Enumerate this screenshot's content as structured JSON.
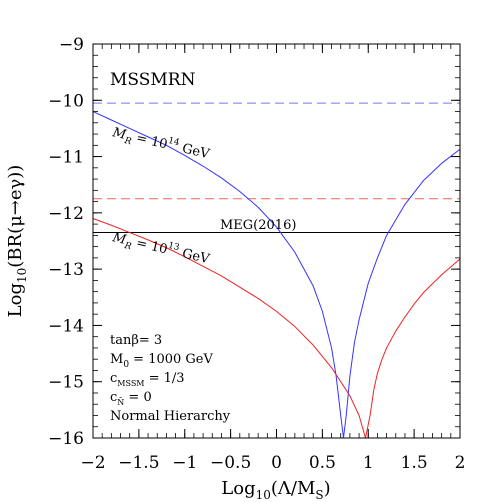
{
  "chart_data": {
    "type": "line",
    "xlabel": {
      "main": "Log",
      "sub": "10",
      "open": "(Λ/M",
      "sub2": "S",
      "close": ")"
    },
    "ylabel": {
      "main": "Log",
      "sub": "10",
      "rest": "(BR(μ→eγ))"
    },
    "xlim": [
      -2,
      2
    ],
    "ylim": [
      -16,
      -9
    ],
    "x_ticks": [
      -2,
      -1.5,
      -1,
      -0.5,
      0,
      0.5,
      1,
      1.5,
      2
    ],
    "x_tick_labels": [
      "−2",
      "−1.5",
      "−1",
      "−0.5",
      "0",
      "0.5",
      "1",
      "1.5",
      "2"
    ],
    "y_ticks": [
      -9,
      -10,
      -11,
      -12,
      -13,
      -14,
      -15,
      -16
    ],
    "y_tick_labels": [
      "−9",
      "−10",
      "−11",
      "−12",
      "−13",
      "−14",
      "−15",
      "−16"
    ],
    "model_label": "MSSMRN",
    "params": {
      "tanb": "tanβ= 3",
      "m0_main": "M",
      "m0_sub": "0",
      "m0_rest": " = 1000 GeV",
      "cmssm_main": "c",
      "cmssm_sub": "MSSM",
      "cmssm_rest": " = 1/3",
      "cn_main": "c",
      "cn_sub": "N̄",
      "cn_rest": " = 0",
      "hierarchy": "Normal Hierarchy"
    },
    "colors": {
      "blue": "#3333ff",
      "red": "#ee2222",
      "blue_dash": "#7777ee",
      "red_dash": "#ee6655",
      "meg": "#000000"
    },
    "hlines": [
      {
        "y": -10.05,
        "style": "dashed",
        "color": "blue_dash"
      },
      {
        "y": -11.75,
        "style": "dashed",
        "color": "red_dash"
      },
      {
        "y": -12.35,
        "style": "solid",
        "color": "meg",
        "label": "MEG(2016)"
      }
    ],
    "series": [
      {
        "color": "blue",
        "label": {
          "m": "M",
          "sub": "R",
          "eq": " = 10",
          "exp": "14",
          "unit": " GeV"
        },
        "x": [
          -2.0,
          -1.8,
          -1.6,
          -1.4,
          -1.2,
          -1.0,
          -0.8,
          -0.6,
          -0.4,
          -0.2,
          0.0,
          0.2,
          0.4,
          0.5,
          0.6,
          0.65,
          0.7,
          0.73,
          0.76,
          0.8,
          0.85,
          0.9,
          1.0,
          1.1,
          1.2,
          1.4,
          1.6,
          1.8,
          2.0
        ],
        "y": [
          -10.2,
          -10.35,
          -10.5,
          -10.65,
          -10.8,
          -10.98,
          -11.17,
          -11.38,
          -11.62,
          -11.9,
          -12.25,
          -12.7,
          -13.3,
          -13.75,
          -14.4,
          -14.9,
          -15.6,
          -16.0,
          -15.6,
          -14.9,
          -14.3,
          -13.9,
          -13.25,
          -12.8,
          -12.4,
          -11.85,
          -11.43,
          -11.12,
          -10.87
        ]
      },
      {
        "color": "red",
        "label": {
          "m": "M",
          "sub": "R",
          "eq": " = 10",
          "exp": "13",
          "unit": " GeV"
        },
        "x": [
          -2.0,
          -1.8,
          -1.6,
          -1.4,
          -1.2,
          -1.0,
          -0.8,
          -0.6,
          -0.4,
          -0.2,
          0.0,
          0.2,
          0.4,
          0.6,
          0.8,
          0.9,
          0.97,
          1.02,
          1.06,
          1.1,
          1.15,
          1.2,
          1.3,
          1.4,
          1.5,
          1.6,
          1.8,
          2.0
        ],
        "y": [
          -12.1,
          -12.22,
          -12.35,
          -12.48,
          -12.62,
          -12.78,
          -12.95,
          -13.12,
          -13.32,
          -13.52,
          -13.75,
          -14.02,
          -14.35,
          -14.75,
          -15.25,
          -15.6,
          -16.0,
          -15.6,
          -15.15,
          -14.85,
          -14.6,
          -14.4,
          -14.1,
          -13.85,
          -13.62,
          -13.42,
          -13.1,
          -12.82
        ]
      }
    ]
  }
}
